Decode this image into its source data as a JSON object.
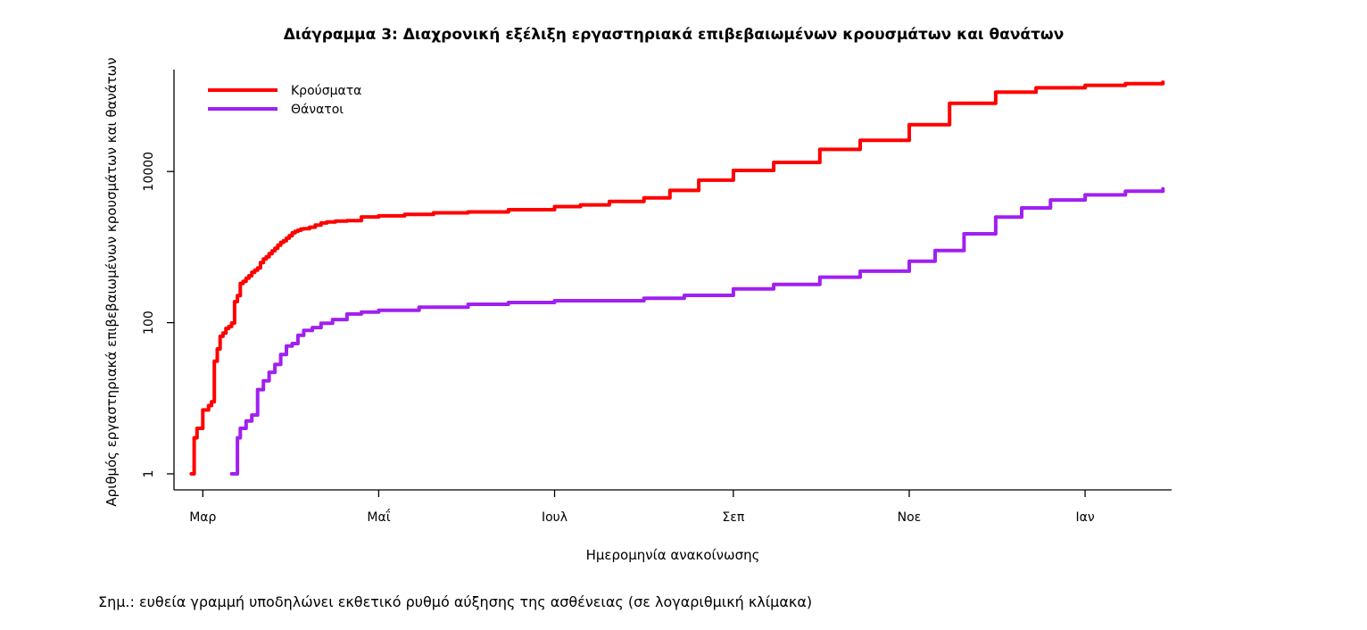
{
  "chart_data": {
    "type": "line",
    "title": "Διάγραμμα 3: Διαχρονική εξέλιξη εργαστηριακά επιβεβαιωμένων κρουσμάτων και θανάτων",
    "xlabel": "Ημερομηνία ανακοίνωσης",
    "ylabel": "Αριθμός εργαστηριακά επιβεβαιωμένων κρουσμάτων και θανάτων",
    "y_scale": "log",
    "ylim": [
      1,
      200000
    ],
    "y_ticks": [
      {
        "value": 1,
        "label": "1"
      },
      {
        "value": 100,
        "label": "100"
      },
      {
        "value": 10000,
        "label": "10000"
      }
    ],
    "x_range": [
      "2020-02-20",
      "2021-01-31"
    ],
    "x_ticks": [
      {
        "date": "2020-03-01",
        "label": "Μαρ"
      },
      {
        "date": "2020-05-01",
        "label": "Μαΐ"
      },
      {
        "date": "2020-07-01",
        "label": "Ιουλ"
      },
      {
        "date": "2020-09-01",
        "label": "Σεπ"
      },
      {
        "date": "2020-11-01",
        "label": "Νοε"
      },
      {
        "date": "2021-01-01",
        "label": "Ιαν"
      }
    ],
    "grid": false,
    "legend_position": "top-left",
    "series": [
      {
        "name": "Κρούσματα",
        "color": "#ff0000",
        "points": [
          [
            "2020-02-26",
            1
          ],
          [
            "2020-02-27",
            3
          ],
          [
            "2020-02-28",
            4
          ],
          [
            "2020-02-29",
            4
          ],
          [
            "2020-03-01",
            7
          ],
          [
            "2020-03-02",
            7
          ],
          [
            "2020-03-03",
            8
          ],
          [
            "2020-03-04",
            9
          ],
          [
            "2020-03-05",
            31
          ],
          [
            "2020-03-06",
            45
          ],
          [
            "2020-03-07",
            66
          ],
          [
            "2020-03-08",
            73
          ],
          [
            "2020-03-09",
            84
          ],
          [
            "2020-03-10",
            89
          ],
          [
            "2020-03-11",
            99
          ],
          [
            "2020-03-12",
            190
          ],
          [
            "2020-03-13",
            228
          ],
          [
            "2020-03-14",
            331
          ],
          [
            "2020-03-15",
            352
          ],
          [
            "2020-03-16",
            387
          ],
          [
            "2020-03-17",
            418
          ],
          [
            "2020-03-18",
            464
          ],
          [
            "2020-03-19",
            495
          ],
          [
            "2020-03-20",
            530
          ],
          [
            "2020-03-21",
            624
          ],
          [
            "2020-03-22",
            695
          ],
          [
            "2020-03-23",
            743
          ],
          [
            "2020-03-24",
            821
          ],
          [
            "2020-03-25",
            892
          ],
          [
            "2020-03-26",
            966
          ],
          [
            "2020-03-27",
            1061
          ],
          [
            "2020-03-28",
            1156
          ],
          [
            "2020-03-29",
            1212
          ],
          [
            "2020-03-30",
            1314
          ],
          [
            "2020-03-31",
            1415
          ],
          [
            "2020-04-01",
            1544
          ],
          [
            "2020-04-02",
            1613
          ],
          [
            "2020-04-03",
            1673
          ],
          [
            "2020-04-04",
            1735
          ],
          [
            "2020-04-05",
            1755
          ],
          [
            "2020-04-07",
            1832
          ],
          [
            "2020-04-09",
            1955
          ],
          [
            "2020-04-11",
            2081
          ],
          [
            "2020-04-13",
            2145
          ],
          [
            "2020-04-16",
            2207
          ],
          [
            "2020-04-20",
            2235
          ],
          [
            "2020-04-25",
            2506
          ],
          [
            "2020-05-01",
            2591
          ],
          [
            "2020-05-10",
            2710
          ],
          [
            "2020-05-20",
            2840
          ],
          [
            "2020-06-01",
            2918
          ],
          [
            "2020-06-15",
            3121
          ],
          [
            "2020-07-01",
            3432
          ],
          [
            "2020-07-10",
            3622
          ],
          [
            "2020-07-20",
            4007
          ],
          [
            "2020-08-01",
            4477
          ],
          [
            "2020-08-10",
            5623
          ],
          [
            "2020-08-20",
            7684
          ],
          [
            "2020-09-01",
            10317
          ],
          [
            "2020-09-15",
            13181
          ],
          [
            "2020-10-01",
            19613
          ],
          [
            "2020-10-15",
            25802
          ],
          [
            "2020-11-01",
            41527
          ],
          [
            "2020-11-15",
            80000
          ],
          [
            "2020-12-01",
            112000
          ],
          [
            "2020-12-15",
            128000
          ],
          [
            "2021-01-01",
            138000
          ],
          [
            "2021-01-15",
            145000
          ],
          [
            "2021-01-28",
            152000
          ]
        ]
      },
      {
        "name": "Θάνατοι",
        "color": "#a020f0",
        "points": [
          [
            "2020-03-11",
            1
          ],
          [
            "2020-03-12",
            1
          ],
          [
            "2020-03-13",
            3
          ],
          [
            "2020-03-14",
            4
          ],
          [
            "2020-03-15",
            4
          ],
          [
            "2020-03-16",
            5
          ],
          [
            "2020-03-17",
            5
          ],
          [
            "2020-03-18",
            6
          ],
          [
            "2020-03-19",
            6
          ],
          [
            "2020-03-20",
            13
          ],
          [
            "2020-03-22",
            17
          ],
          [
            "2020-03-24",
            22
          ],
          [
            "2020-03-26",
            28
          ],
          [
            "2020-03-28",
            38
          ],
          [
            "2020-03-30",
            49
          ],
          [
            "2020-04-01",
            53
          ],
          [
            "2020-04-03",
            68
          ],
          [
            "2020-04-05",
            79
          ],
          [
            "2020-04-08",
            86
          ],
          [
            "2020-04-11",
            98
          ],
          [
            "2020-04-15",
            110
          ],
          [
            "2020-04-20",
            130
          ],
          [
            "2020-04-25",
            138
          ],
          [
            "2020-05-01",
            146
          ],
          [
            "2020-05-15",
            160
          ],
          [
            "2020-06-01",
            175
          ],
          [
            "2020-06-15",
            185
          ],
          [
            "2020-07-01",
            195
          ],
          [
            "2020-07-15",
            195
          ],
          [
            "2020-08-01",
            210
          ],
          [
            "2020-08-15",
            230
          ],
          [
            "2020-09-01",
            280
          ],
          [
            "2020-09-15",
            320
          ],
          [
            "2020-10-01",
            400
          ],
          [
            "2020-10-15",
            480
          ],
          [
            "2020-11-01",
            650
          ],
          [
            "2020-11-10",
            900
          ],
          [
            "2020-11-20",
            1500
          ],
          [
            "2020-12-01",
            2500
          ],
          [
            "2020-12-10",
            3300
          ],
          [
            "2020-12-20",
            4200
          ],
          [
            "2021-01-01",
            4900
          ],
          [
            "2021-01-15",
            5500
          ],
          [
            "2021-01-28",
            5900
          ]
        ]
      }
    ],
    "note": "Σημ.: ευθεία γραμμή υποδηλώνει εκθετικό ρυθμό αύξησης της ασθένειας (σε λογαριθμική κλίμακα)"
  }
}
